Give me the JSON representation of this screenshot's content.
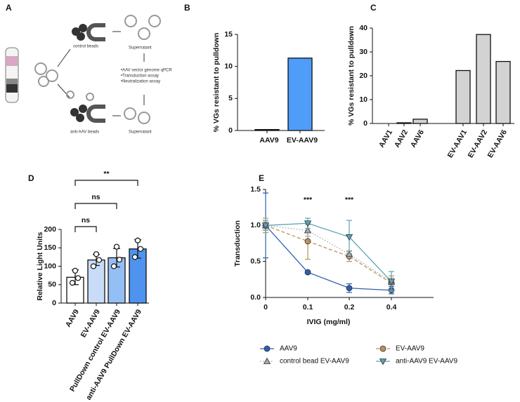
{
  "diagram": {
    "panel": "A",
    "control_beads": "control beads",
    "supernatant_top": "Supernatant",
    "assays": [
      "•AAV vector genome qPCR",
      "•Transduction assay",
      "•Neutralization assay"
    ],
    "anti_beads": "anti-AAV beads",
    "supernatant_bottom": "Supernatant"
  },
  "chart_data": [
    {
      "type": "bar",
      "panel": "B",
      "y_label": "% VGs resistant to pulldown",
      "categories": [
        "AAV9",
        "EV-AAV9"
      ],
      "values": [
        0.15,
        11.3
      ],
      "colors": [
        "#222222",
        "#4f9cf9"
      ],
      "ylim": [
        0,
        15
      ],
      "yticks": [
        0,
        5,
        10,
        15
      ]
    },
    {
      "type": "bar",
      "panel": "C",
      "y_label": "% VGs resistant to pulldown",
      "categories": [
        "AAV1",
        "AAV2",
        "AAV6",
        null,
        "EV-AAV1",
        "EV-AAV2",
        "EV-AAV6"
      ],
      "values": [
        0,
        0.3,
        1.8,
        null,
        22.2,
        37.3,
        26
      ],
      "colors": [
        "#d3d3d3",
        "#d3d3d3",
        "#d3d3d3",
        "#d3d3d3",
        "#d3d3d3",
        "#d3d3d3",
        "#d3d3d3"
      ],
      "ylim": [
        0,
        40
      ],
      "yticks": [
        0,
        10,
        20,
        30,
        40
      ]
    },
    {
      "type": "bar",
      "panel": "D",
      "y_label": "Relative Light Units",
      "categories": [
        "AAV9",
        "EV-AAV9",
        "PullDown control EV-AAV9",
        "anti-AAV9 PullDown EV-AAV9"
      ],
      "values": [
        70,
        117,
        123,
        147
      ],
      "errors": [
        20,
        15,
        25,
        25
      ],
      "points": [
        [
          55,
          88,
          68
        ],
        [
          100,
          133,
          117
        ],
        [
          100,
          153,
          118
        ],
        [
          125,
          170,
          147
        ]
      ],
      "colors": [
        "#ffffff",
        "#c9dcf7",
        "#93bff5",
        "#4f93ef"
      ],
      "ylim": [
        0,
        200
      ],
      "yticks": [
        0,
        50,
        100,
        150,
        200
      ],
      "comparisons": [
        "ns",
        "ns",
        "**"
      ]
    },
    {
      "type": "line",
      "panel": "E",
      "x_label": "IVIG  (mg/ml)",
      "y_label": "Transduction",
      "categories": [
        "0",
        "0.1",
        "0.2",
        "0.4"
      ],
      "ylim": [
        0,
        1.5
      ],
      "yticks": [
        {
          "value": 0,
          "label": "0.0"
        },
        0.5,
        {
          "value": 1,
          "label": "1.0"
        },
        1.5
      ],
      "series": [
        {
          "name": "AAV9",
          "color": "#2c5fb3",
          "marker": "circle",
          "linestyle": "solid",
          "values": [
            1,
            0.35,
            0.13,
            0.1
          ],
          "errors": [
            0.45,
            0.02,
            0.06,
            0.05
          ]
        },
        {
          "name": "EV-AAV9",
          "color": "#b8935a",
          "marker": "circle",
          "linestyle": "dashed",
          "values": [
            1,
            0.78,
            0.57,
            0.2
          ],
          "errors": [
            0.1,
            0.25,
            0.07,
            0.1
          ]
        },
        {
          "name": "control bead EV-AAV9",
          "color": "#a8a8a8",
          "marker": "triangle",
          "linestyle": "dotted",
          "values": [
            1,
            0.93,
            0.6,
            0.22
          ],
          "errors": [
            0.05,
            0.08,
            0.05,
            0.05
          ]
        },
        {
          "name": "anti-AAV9 EV-AAV9",
          "color": "#5ba3b5",
          "marker": "triangle-down",
          "linestyle": "solid",
          "values": [
            1,
            1.03,
            0.84,
            0.22
          ],
          "errors": [
            0.07,
            0.07,
            0.23,
            0.14
          ]
        }
      ],
      "annotations": [
        {
          "text": "***",
          "x": "0.1"
        },
        {
          "text": "***",
          "x": "0.2"
        }
      ]
    }
  ]
}
